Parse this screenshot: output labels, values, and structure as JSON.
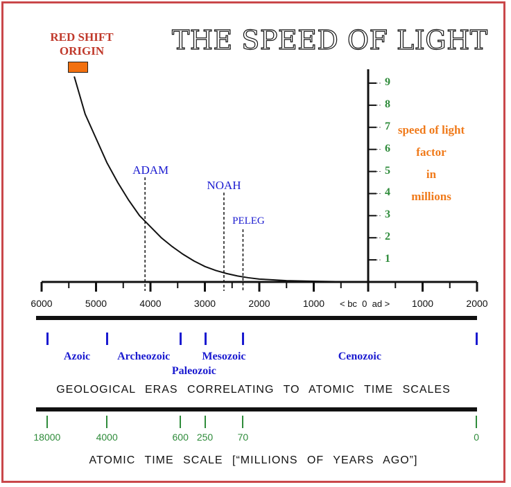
{
  "title": "THE SPEED OF LIGHT",
  "red_shift_label": "RED SHIFT ORIGIN",
  "y_axis_label": [
    "speed of light",
    "factor",
    "in",
    "millions"
  ],
  "bc_ad_label": "< bc  0  ad >",
  "eras_caption": "GEOLOGICAL ERAS CORRELATING TO ATOMIC TIME SCALES",
  "atomic_caption": "ATOMIC TIME SCALE  [“MILLIONS OF YEARS AGO”]",
  "colors": {
    "frame": "#c9474a",
    "red_shift_text": "#c0392b",
    "red_shift_box": "#f2700f",
    "y_label": "#f07a1a",
    "events": "#1a1ad0",
    "eras": "#1a1ad0",
    "atomic": "#2e8b3a",
    "y_ticks": "#2e8b3a"
  },
  "chart_data": {
    "type": "line",
    "title": "THE SPEED OF LIGHT",
    "xlabel": "",
    "ylabel": "speed of light factor in millions",
    "x_tick_labels": [
      "6000",
      "5000",
      "4000",
      "3000",
      "2000",
      "1000",
      "0",
      "1000",
      "2000"
    ],
    "xlim": [
      -6000,
      2000
    ],
    "ylim": [
      0,
      9.5
    ],
    "y_ticks": [
      1,
      2,
      3,
      4,
      5,
      6,
      7,
      8,
      9
    ],
    "series": [
      {
        "x": [
          -5400,
          -5200,
          -5000,
          -4800,
          -4600,
          -4400,
          -4200,
          -4000,
          -3800,
          -3600,
          -3400,
          -3200,
          -3000,
          -2800,
          -2600,
          -2400,
          -2200,
          -2000,
          -1500,
          -1000,
          -500,
          0,
          500,
          1000,
          1500,
          2000
        ],
        "values": [
          9.3,
          7.6,
          6.5,
          5.4,
          4.5,
          3.7,
          3.0,
          2.5,
          2.0,
          1.6,
          1.25,
          0.95,
          0.7,
          0.52,
          0.38,
          0.27,
          0.19,
          0.13,
          0.06,
          0.03,
          0.012,
          0.0,
          0.0,
          0.0,
          0.0,
          0.0
        ]
      }
    ],
    "annotations": [
      {
        "label": "ADAM",
        "x": -4100
      },
      {
        "label": "NOAH",
        "x": -2650
      },
      {
        "label": "PELEG",
        "x": -2300
      }
    ]
  },
  "geological_eras": [
    {
      "name": "Azoic"
    },
    {
      "name": "Archeozoic"
    },
    {
      "name": "Paleozoic"
    },
    {
      "name": "Mesozoic"
    },
    {
      "name": "Cenozoic"
    }
  ],
  "era_boundaries_years": [
    -5900,
    -4800,
    -3450,
    -3000,
    -2300,
    1990
  ],
  "atomic_scale_values": [
    "18000",
    "4000",
    "600",
    "250",
    "70",
    "0"
  ]
}
